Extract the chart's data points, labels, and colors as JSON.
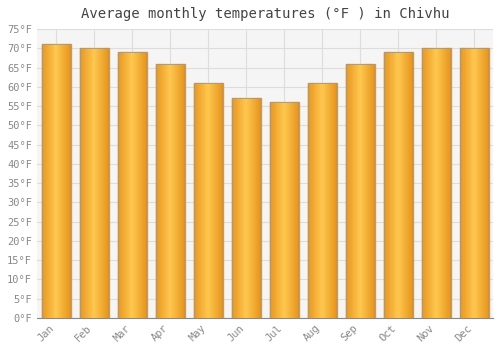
{
  "title": "Average monthly temperatures (°F ) in Chivhu",
  "months": [
    "Jan",
    "Feb",
    "Mar",
    "Apr",
    "May",
    "Jun",
    "Jul",
    "Aug",
    "Sep",
    "Oct",
    "Nov",
    "Dec"
  ],
  "values": [
    71,
    70,
    69,
    66,
    61,
    57,
    56,
    61,
    66,
    69,
    70,
    70
  ],
  "bar_color_left": "#E8961E",
  "bar_color_center": "#FFC04C",
  "bar_color_right": "#E8961E",
  "bar_edge_color": "#999999",
  "ylim": [
    0,
    75
  ],
  "yticks": [
    0,
    5,
    10,
    15,
    20,
    25,
    30,
    35,
    40,
    45,
    50,
    55,
    60,
    65,
    70,
    75
  ],
  "ytick_labels": [
    "0°F",
    "5°F",
    "10°F",
    "15°F",
    "20°F",
    "25°F",
    "30°F",
    "35°F",
    "40°F",
    "45°F",
    "50°F",
    "55°F",
    "60°F",
    "65°F",
    "70°F",
    "75°F"
  ],
  "background_color": "#ffffff",
  "plot_bg_color": "#f5f5f5",
  "grid_color": "#dddddd",
  "title_fontsize": 10,
  "tick_fontsize": 7.5,
  "tick_font_color": "#888888",
  "title_font_color": "#444444",
  "bar_width": 0.75,
  "n_gradient_segments": 40
}
